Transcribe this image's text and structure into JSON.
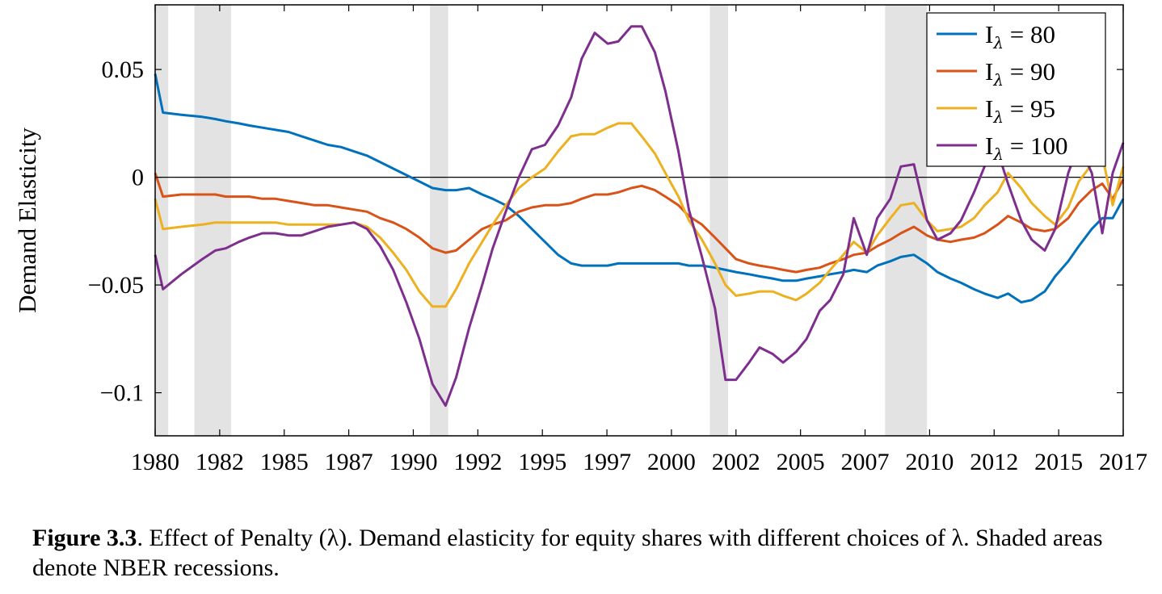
{
  "chart_data": {
    "type": "line",
    "ylabel": "Demand Elasticity",
    "xlabel": "",
    "xlim": [
      1980,
      2017
    ],
    "ylim": [
      -0.12,
      0.08
    ],
    "yticks": [
      0.05,
      0,
      -0.05,
      -0.1
    ],
    "ytick_labels": [
      "0.05",
      "0",
      "−0.05",
      "−0.1"
    ],
    "xtick_labels": [
      "1980",
      "1982",
      "1985",
      "1987",
      "1990",
      "1992",
      "1995",
      "1997",
      "2000",
      "2002",
      "2005",
      "2007",
      "2010",
      "2012",
      "2015",
      "2017"
    ],
    "grid": false,
    "zero_line": true,
    "legend_position": "top-right",
    "recessions": [
      [
        1980.0,
        1980.5
      ],
      [
        1981.5,
        1982.9
      ],
      [
        1990.5,
        1991.2
      ],
      [
        2001.2,
        2001.9
      ],
      [
        2007.9,
        2009.5
      ]
    ],
    "x": [
      1980.0,
      1980.3,
      1981.0,
      1981.8,
      1982.3,
      1982.7,
      1983.2,
      1983.6,
      1984.1,
      1984.6,
      1985.1,
      1985.6,
      1986.1,
      1986.6,
      1987.1,
      1987.6,
      1988.1,
      1988.6,
      1989.1,
      1989.6,
      1990.1,
      1990.6,
      1991.1,
      1991.5,
      1992.0,
      1992.5,
      1992.9,
      1993.4,
      1993.9,
      1994.4,
      1994.9,
      1995.4,
      1995.9,
      1996.3,
      1996.8,
      1997.3,
      1997.7,
      1998.2,
      1998.6,
      1999.1,
      1999.5,
      2000.0,
      2000.4,
      2000.9,
      2001.4,
      2001.8,
      2002.2,
      2002.7,
      2003.1,
      2003.6,
      2004.0,
      2004.5,
      2004.9,
      2005.4,
      2005.8,
      2006.3,
      2006.7,
      2007.2,
      2007.6,
      2008.1,
      2008.5,
      2009.0,
      2009.5,
      2009.9,
      2010.4,
      2010.8,
      2011.3,
      2011.7,
      2012.2,
      2012.6,
      2013.1,
      2013.5,
      2014.0,
      2014.4,
      2014.9,
      2015.3,
      2015.8,
      2016.2,
      2016.6,
      2017.0
    ],
    "series": [
      {
        "name": "Iλ = 80",
        "color": "#0072BD",
        "values": [
          0.048,
          0.03,
          0.029,
          0.028,
          0.027,
          0.026,
          0.025,
          0.024,
          0.023,
          0.022,
          0.021,
          0.019,
          0.017,
          0.015,
          0.014,
          0.012,
          0.01,
          0.007,
          0.004,
          0.001,
          -0.002,
          -0.005,
          -0.006,
          -0.006,
          -0.005,
          -0.008,
          -0.01,
          -0.013,
          -0.018,
          -0.024,
          -0.03,
          -0.036,
          -0.04,
          -0.041,
          -0.041,
          -0.041,
          -0.04,
          -0.04,
          -0.04,
          -0.04,
          -0.04,
          -0.04,
          -0.041,
          -0.041,
          -0.042,
          -0.043,
          -0.044,
          -0.045,
          -0.046,
          -0.047,
          -0.048,
          -0.048,
          -0.047,
          -0.046,
          -0.045,
          -0.044,
          -0.043,
          -0.044,
          -0.041,
          -0.039,
          -0.037,
          -0.036,
          -0.04,
          -0.044,
          -0.047,
          -0.049,
          -0.052,
          -0.054,
          -0.056,
          -0.054,
          -0.058,
          -0.057,
          -0.053,
          -0.046,
          -0.039,
          -0.032,
          -0.024,
          -0.019,
          -0.019,
          -0.01
        ]
      },
      {
        "name": "Iλ = 90",
        "color": "#D95319",
        "values": [
          0.002,
          -0.009,
          -0.008,
          -0.008,
          -0.008,
          -0.009,
          -0.009,
          -0.009,
          -0.01,
          -0.01,
          -0.011,
          -0.012,
          -0.013,
          -0.013,
          -0.014,
          -0.015,
          -0.016,
          -0.019,
          -0.021,
          -0.024,
          -0.028,
          -0.033,
          -0.035,
          -0.034,
          -0.029,
          -0.024,
          -0.022,
          -0.02,
          -0.016,
          -0.014,
          -0.013,
          -0.013,
          -0.012,
          -0.01,
          -0.008,
          -0.008,
          -0.007,
          -0.005,
          -0.004,
          -0.006,
          -0.009,
          -0.013,
          -0.018,
          -0.022,
          -0.028,
          -0.033,
          -0.038,
          -0.04,
          -0.041,
          -0.042,
          -0.043,
          -0.044,
          -0.043,
          -0.042,
          -0.04,
          -0.038,
          -0.036,
          -0.035,
          -0.032,
          -0.029,
          -0.026,
          -0.023,
          -0.027,
          -0.029,
          -0.03,
          -0.029,
          -0.028,
          -0.026,
          -0.022,
          -0.018,
          -0.021,
          -0.024,
          -0.025,
          -0.024,
          -0.019,
          -0.012,
          -0.006,
          -0.003,
          -0.01,
          -0.001
        ]
      },
      {
        "name": "Iλ = 95",
        "color": "#EDB120",
        "values": [
          -0.01,
          -0.024,
          -0.023,
          -0.022,
          -0.021,
          -0.021,
          -0.021,
          -0.021,
          -0.021,
          -0.021,
          -0.022,
          -0.022,
          -0.022,
          -0.022,
          -0.022,
          -0.021,
          -0.023,
          -0.028,
          -0.035,
          -0.043,
          -0.053,
          -0.06,
          -0.06,
          -0.052,
          -0.04,
          -0.03,
          -0.022,
          -0.013,
          -0.005,
          0.0,
          0.004,
          0.012,
          0.019,
          0.02,
          0.02,
          0.023,
          0.025,
          0.025,
          0.019,
          0.011,
          0.002,
          -0.009,
          -0.02,
          -0.029,
          -0.04,
          -0.05,
          -0.055,
          -0.054,
          -0.053,
          -0.053,
          -0.055,
          -0.057,
          -0.054,
          -0.049,
          -0.043,
          -0.036,
          -0.03,
          -0.035,
          -0.027,
          -0.019,
          -0.013,
          -0.012,
          -0.02,
          -0.025,
          -0.024,
          -0.023,
          -0.019,
          -0.013,
          -0.007,
          0.002,
          -0.005,
          -0.012,
          -0.018,
          -0.022,
          -0.014,
          -0.002,
          0.006,
          0.01,
          -0.013,
          0.005
        ]
      },
      {
        "name": "Iλ = 100",
        "color": "#7E2F8E",
        "values": [
          -0.036,
          -0.052,
          -0.045,
          -0.038,
          -0.034,
          -0.033,
          -0.03,
          -0.028,
          -0.026,
          -0.026,
          -0.027,
          -0.027,
          -0.025,
          -0.023,
          -0.022,
          -0.021,
          -0.024,
          -0.032,
          -0.043,
          -0.058,
          -0.075,
          -0.096,
          -0.106,
          -0.093,
          -0.07,
          -0.05,
          -0.033,
          -0.016,
          0.0,
          0.013,
          0.015,
          0.024,
          0.037,
          0.055,
          0.067,
          0.062,
          0.063,
          0.07,
          0.07,
          0.058,
          0.04,
          0.012,
          -0.015,
          -0.037,
          -0.061,
          -0.094,
          -0.094,
          -0.086,
          -0.079,
          -0.082,
          -0.086,
          -0.081,
          -0.075,
          -0.062,
          -0.057,
          -0.045,
          -0.019,
          -0.036,
          -0.019,
          -0.01,
          0.005,
          0.006,
          -0.02,
          -0.029,
          -0.026,
          -0.02,
          -0.007,
          0.005,
          0.012,
          -0.003,
          -0.02,
          -0.029,
          -0.034,
          -0.024,
          0.002,
          0.015,
          0.002,
          -0.026,
          0.002,
          0.016
        ]
      }
    ]
  },
  "caption": {
    "bold": "Figure 3.3",
    "text": ". Effect of Penalty (λ). Demand elasticity for equity shares with different choices of λ. Shaded areas denote NBER recessions."
  },
  "colors": {
    "recession": "#e3e3e3",
    "axis": "#000000"
  }
}
